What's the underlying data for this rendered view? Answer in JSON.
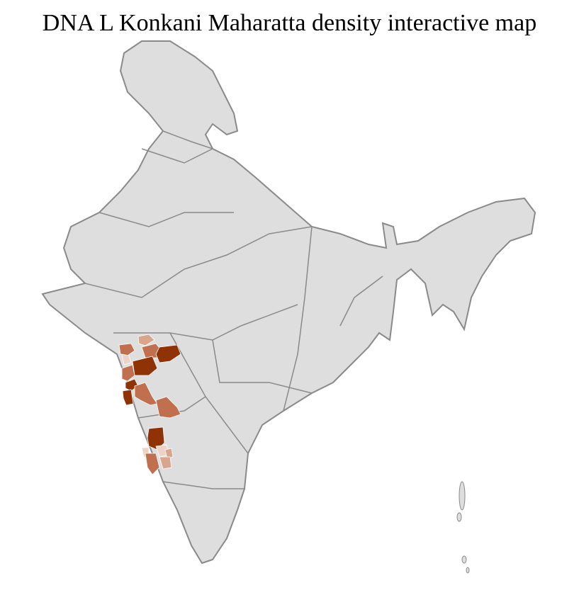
{
  "title": "DNA L Konkani Maharatta density interactive map",
  "colors": {
    "land": "#dedede",
    "border": "#8a8a8a",
    "district_line": "#ffffff",
    "density_high": "#8f3306",
    "density_mid": "#c0704e",
    "density_low": "#d9a58c",
    "density_very_low": "#ecd3c6"
  }
}
